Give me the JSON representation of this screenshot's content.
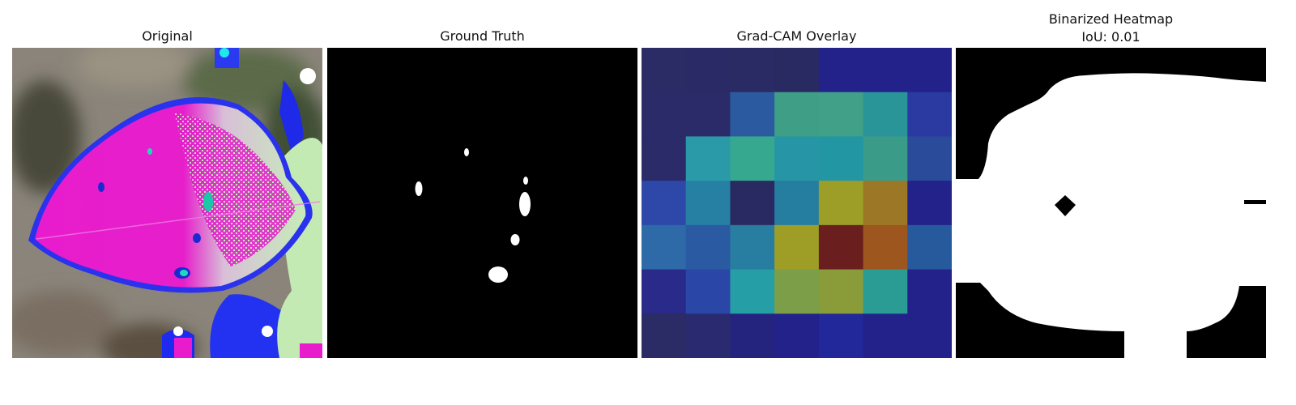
{
  "panels": {
    "original": {
      "title": "Original"
    },
    "ground_truth": {
      "title": "Ground Truth"
    },
    "gradcam": {
      "title": "Grad-CAM Overlay",
      "colors": [
        [
          "#2b2b66",
          "#2a2a66",
          "#2a2a64",
          "#2a2a62",
          "#22228a",
          "#22228a",
          "#22228a"
        ],
        [
          "#2b2b6a",
          "#2b2b6a",
          "#2b5aa0",
          "#3f9f86",
          "#40a088",
          "#2a9598",
          "#2a3aa0"
        ],
        [
          "#2b2b6a",
          "#2a9aa8",
          "#36a890",
          "#2696a6",
          "#2396a4",
          "#3a9c88",
          "#2a4a9a"
        ],
        [
          "#2d48a8",
          "#2680a4",
          "#2a2a62",
          "#257ea0",
          "#9c9e28",
          "#9c7826",
          "#22228a"
        ],
        [
          "#2e6aa8",
          "#2a5aa2",
          "#277ea0",
          "#9e9e26",
          "#6a1e1e",
          "#9c561e",
          "#265a9c"
        ],
        [
          "#2a2a8a",
          "#2a46a6",
          "#269ea6",
          "#7c9e48",
          "#8a9c3a",
          "#2a9c94",
          "#22228a"
        ],
        [
          "#2b2b66",
          "#2a2a70",
          "#24247e",
          "#22228a",
          "#22289a",
          "#22228a",
          "#22228a"
        ]
      ]
    },
    "binarized": {
      "title": "Binarized Heatmap",
      "iou": "IoU: 0.01"
    }
  }
}
